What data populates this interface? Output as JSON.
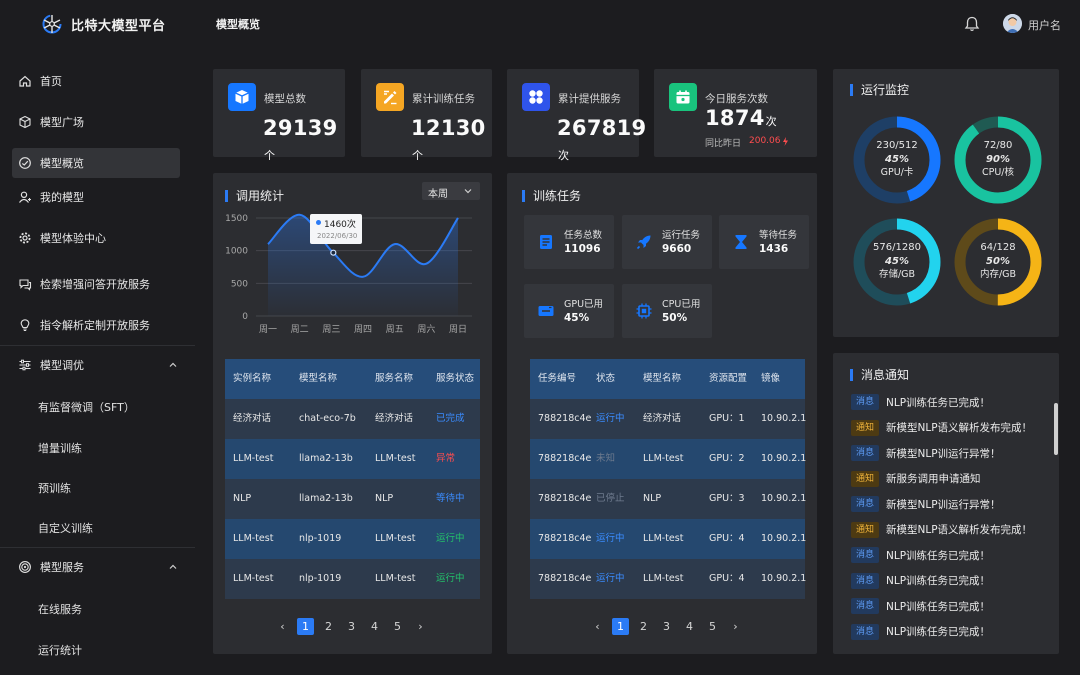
{
  "header": {
    "brand": "比特大模型平台",
    "page_title": "模型概览",
    "username": "用户名"
  },
  "sidebar": {
    "items": [
      {
        "label": "首页",
        "icon": "home-icon"
      },
      {
        "label": "模型广场",
        "icon": "cube-icon"
      },
      {
        "label": "模型概览",
        "icon": "dashboard-icon",
        "active": true
      },
      {
        "label": "我的模型",
        "icon": "user-icon"
      },
      {
        "label": "模型体验中心",
        "icon": "gear-icon"
      },
      {
        "label": "检索增强问答开放服务",
        "icon": "chat-icon"
      },
      {
        "label": "指令解析定制开放服务",
        "icon": "bulb-icon"
      }
    ],
    "tuning": {
      "label": "模型调优",
      "icon": "sliders-icon",
      "children": [
        "有监督微调（SFT）",
        "增量训练",
        "预训练",
        "自定义训练"
      ]
    },
    "service": {
      "label": "模型服务",
      "icon": "target-icon",
      "children": [
        "在线服务",
        "运行统计"
      ]
    }
  },
  "stats": [
    {
      "label": "模型总数",
      "value": "29139",
      "unit": "个",
      "icon": "box-icon",
      "color": "#1677ff"
    },
    {
      "label": "累计训练任务",
      "value": "12130",
      "unit": "个",
      "icon": "edit-icon",
      "color": "#f5a623"
    },
    {
      "label": "累计提供服务",
      "value": "267819",
      "unit": "次",
      "icon": "grid-icon",
      "color": "#2f54eb"
    },
    {
      "label": "今日服务次数",
      "value": "1874",
      "unit": "次",
      "icon": "calendar-icon",
      "color": "#19c37d",
      "compare_label": "同比昨日",
      "compare_value": "200.06"
    }
  ],
  "usage": {
    "title": "调用统计",
    "period": "本周",
    "tooltip": {
      "value": "1460次",
      "date": "2022/06/30"
    },
    "chart_data": {
      "type": "line",
      "categories": [
        "周一",
        "周二",
        "周三",
        "周四",
        "周五",
        "周六",
        "周日"
      ],
      "values": [
        1100,
        1550,
        1000,
        600,
        1100,
        800,
        1500
      ],
      "ylim": [
        0,
        1500
      ],
      "yticks": [
        0,
        500,
        1000,
        1500
      ],
      "grid": true,
      "color": "#2b7bf5"
    },
    "table": {
      "headers": [
        "实例名称",
        "模型名称",
        "服务名称",
        "服务状态"
      ],
      "rows": [
        [
          "经济对话",
          "chat-eco-7b",
          "经济对话",
          "已完成",
          "done"
        ],
        [
          "LLM-test",
          "llama2-13b",
          "LLM-test",
          "异常",
          "err"
        ],
        [
          "NLP",
          "llama2-13b",
          "NLP",
          "等待中",
          "wait"
        ],
        [
          "LLM-test",
          "nlp-1019",
          "LLM-test",
          "运行中",
          "run"
        ],
        [
          "LLM-test",
          "nlp-1019",
          "LLM-test",
          "运行中",
          "run"
        ]
      ]
    },
    "pages": [
      "1",
      "2",
      "3",
      "4",
      "5"
    ]
  },
  "training": {
    "title": "训练任务",
    "tiles": [
      {
        "label": "任务总数",
        "value": "11096",
        "icon": "doc-icon"
      },
      {
        "label": "运行任务",
        "value": "9660",
        "icon": "rocket-icon"
      },
      {
        "label": "等待任务",
        "value": "1436",
        "icon": "hourglass-icon"
      },
      {
        "label": "GPU已用",
        "value": "45%",
        "icon": "gpu-icon"
      },
      {
        "label": "CPU已用",
        "value": "50%",
        "icon": "cpu-icon"
      }
    ],
    "table": {
      "headers": [
        "任务编号",
        "状态",
        "模型名称",
        "资源配置",
        "镜像"
      ],
      "rows": [
        [
          "788218c4e",
          "运行中",
          "经济对话",
          "GPU：1",
          "10.90.2.1",
          "blue"
        ],
        [
          "788218c4e",
          "未知",
          "LLM-test",
          "GPU：2",
          "10.90.2.1",
          "grey"
        ],
        [
          "788218c4e",
          "已停止",
          "NLP",
          "GPU：3",
          "10.90.2.1",
          "grey"
        ],
        [
          "788218c4e",
          "运行中",
          "LLM-test",
          "GPU：4",
          "10.90.2.1",
          "blue"
        ],
        [
          "788218c4e",
          "运行中",
          "LLM-test",
          "GPU：4",
          "10.90.2.1",
          "blue"
        ]
      ]
    },
    "pages": [
      "1",
      "2",
      "3",
      "4",
      "5"
    ]
  },
  "monitor": {
    "title": "运行监控",
    "gauges": [
      {
        "ratio": "230/512",
        "percent": "45%",
        "label": "GPU/卡",
        "fraction": 0.45,
        "color": "#1677ff",
        "track": "#1e3f66"
      },
      {
        "ratio": "72/80",
        "percent": "90%",
        "label": "CPU/核",
        "fraction": 0.9,
        "color": "#19c3a0",
        "track": "#1f5a52"
      },
      {
        "ratio": "576/1280",
        "percent": "45%",
        "label": "存储/GB",
        "fraction": 0.45,
        "color": "#22d3ee",
        "track": "#1f4d5a"
      },
      {
        "ratio": "64/128",
        "percent": "50%",
        "label": "内存/GB",
        "fraction": 0.5,
        "color": "#f5b416",
        "track": "#5e4a1a"
      }
    ]
  },
  "messages": {
    "title": "消息通知",
    "tags": {
      "info": "消息",
      "notice": "通知"
    },
    "items": [
      {
        "type": "info",
        "text": "NLP训练任务已完成！"
      },
      {
        "type": "notice",
        "text": "新模型NLP语义解析发布完成！"
      },
      {
        "type": "info",
        "text": "新模型NLP训运行异常！"
      },
      {
        "type": "notice",
        "text": "新服务调用申请通知"
      },
      {
        "type": "info",
        "text": "新模型NLP训运行异常！"
      },
      {
        "type": "notice",
        "text": "新模型NLP语义解析发布完成！"
      },
      {
        "type": "info",
        "text": "NLP训练任务已完成！"
      },
      {
        "type": "info",
        "text": "NLP训练任务已完成！"
      },
      {
        "type": "info",
        "text": "NLP训练任务已完成！"
      },
      {
        "type": "info",
        "text": "NLP训练任务已完成！"
      }
    ]
  }
}
